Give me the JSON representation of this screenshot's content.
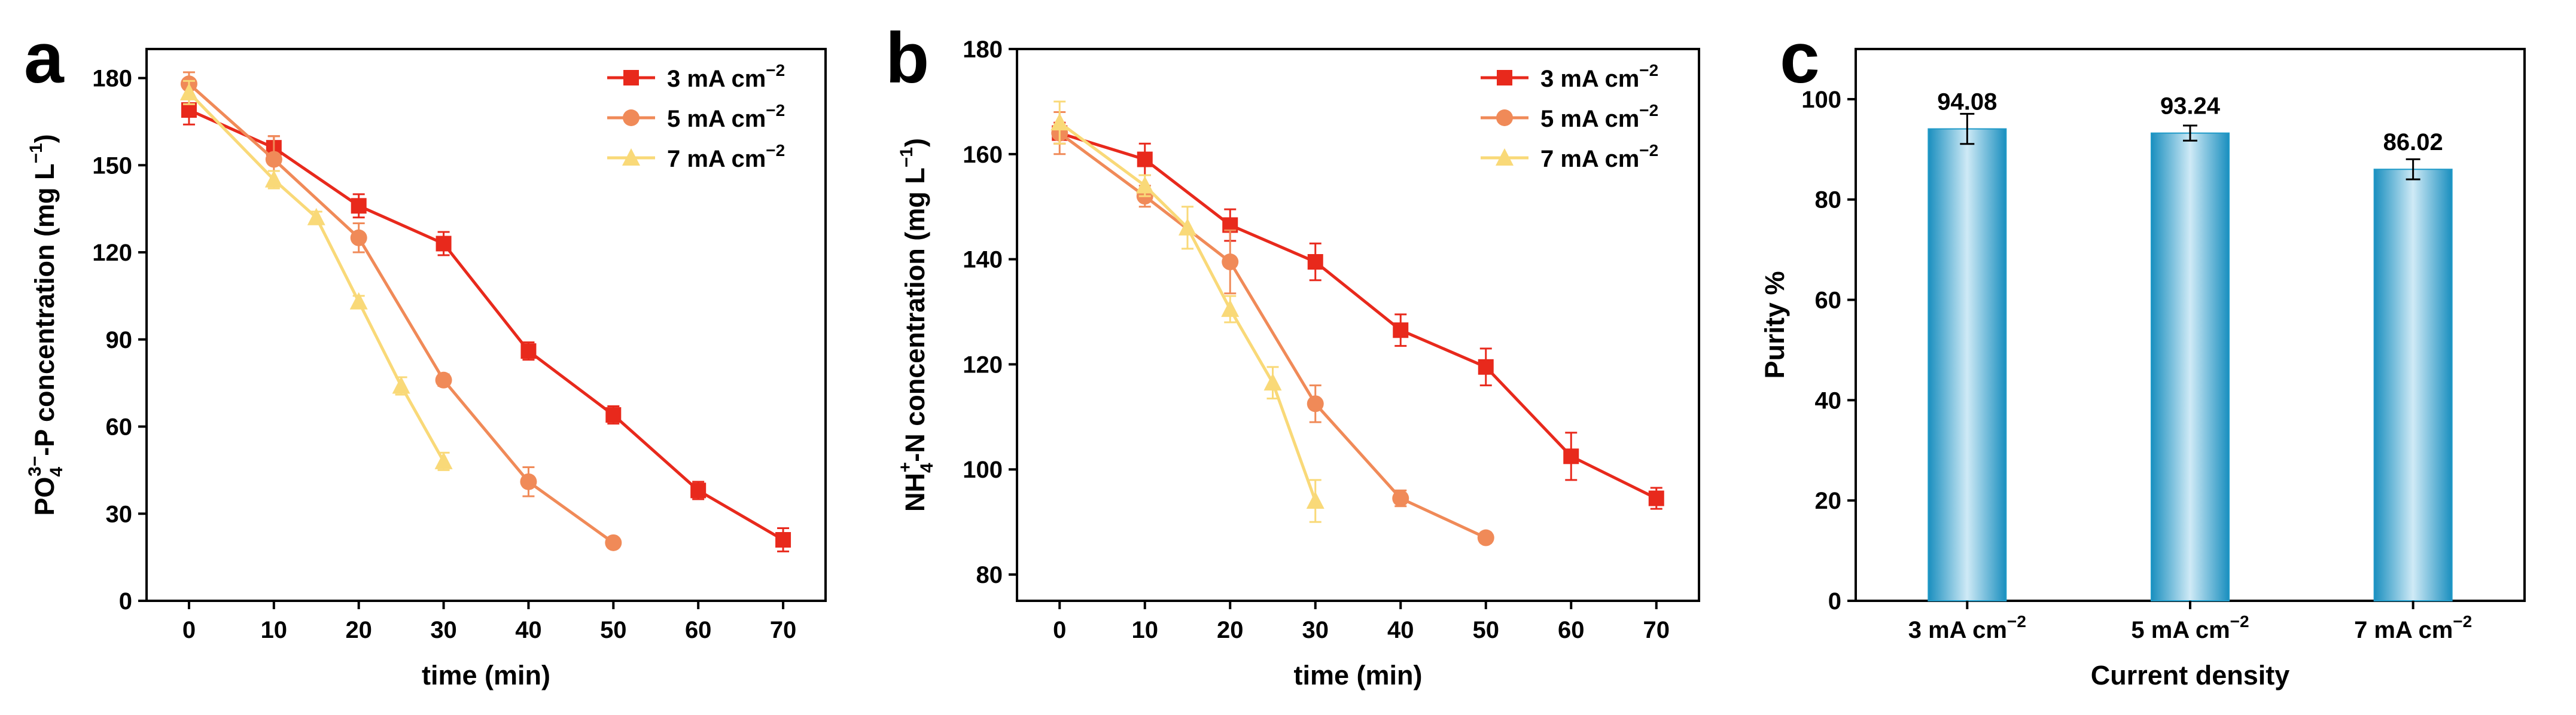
{
  "chart_data": [
    {
      "panel_label": "a",
      "type": "line",
      "xlabel": "time (min)",
      "ylabel": {
        "base": "PO",
        "sub": "4",
        "sup": "3−",
        "rest": "-P concentration (mg L",
        "rest_sup": "−1",
        "end": ")"
      },
      "xlim": [
        -5,
        75
      ],
      "ylim": [
        0,
        190
      ],
      "xticks": [
        0,
        10,
        20,
        30,
        40,
        50,
        60,
        70
      ],
      "yticks": [
        0,
        30,
        60,
        90,
        120,
        150,
        180
      ],
      "legend_position": "top-right",
      "series": [
        {
          "name": "3 mA cm",
          "name_sup": "−2",
          "color": "#e8291c",
          "marker": "square",
          "x": [
            0,
            10,
            20,
            30,
            40,
            50,
            60,
            70
          ],
          "y": [
            169,
            156,
            136,
            123,
            86,
            64,
            38,
            21
          ],
          "err": [
            5,
            4,
            4,
            4,
            3,
            3,
            3,
            4
          ]
        },
        {
          "name": "5 mA cm",
          "name_sup": "−2",
          "color": "#f08a58",
          "marker": "circle",
          "x": [
            0,
            10,
            20,
            30,
            40,
            50
          ],
          "y": [
            178,
            152,
            125,
            76,
            41,
            20
          ],
          "err": [
            4,
            8,
            5,
            2,
            5,
            1
          ]
        },
        {
          "name": "7 mA cm",
          "name_sup": "−2",
          "color": "#f9d978",
          "marker": "triangle",
          "x": [
            0,
            10,
            15,
            20,
            25,
            30
          ],
          "y": [
            175,
            145,
            132,
            103,
            74,
            48
          ],
          "err": [
            4,
            3,
            2,
            2,
            3,
            3
          ]
        }
      ]
    },
    {
      "panel_label": "b",
      "type": "line",
      "xlabel": "time (min)",
      "ylabel": {
        "base": "NH",
        "sub": "4",
        "sup": "+",
        "rest": "-N concentration (mg L",
        "rest_sup": "−1",
        "end": ")"
      },
      "xlim": [
        -5,
        75
      ],
      "ylim": [
        75,
        180
      ],
      "xticks": [
        0,
        10,
        20,
        30,
        40,
        50,
        60,
        70
      ],
      "yticks": [
        80,
        100,
        120,
        140,
        160,
        180
      ],
      "legend_position": "top-right",
      "series": [
        {
          "name": "3 mA cm",
          "name_sup": "−2",
          "color": "#e8291c",
          "marker": "square",
          "x": [
            0,
            10,
            20,
            30,
            40,
            50,
            60,
            70
          ],
          "y": [
            164,
            159,
            146.5,
            139.5,
            126.5,
            119.5,
            102.5,
            94.5
          ],
          "err": [
            2,
            3,
            3,
            3.5,
            3,
            3.5,
            4.5,
            2
          ]
        },
        {
          "name": "5 mA cm",
          "name_sup": "−2",
          "color": "#f08a58",
          "marker": "circle",
          "x": [
            0,
            10,
            20,
            30,
            40,
            50
          ],
          "y": [
            164,
            152,
            139.5,
            112.5,
            94.5,
            87
          ],
          "err": [
            4,
            2,
            6,
            3.5,
            1.5,
            1
          ]
        },
        {
          "name": "7 mA cm",
          "name_sup": "−2",
          "color": "#f9d978",
          "marker": "triangle",
          "x": [
            0,
            10,
            15,
            20,
            25,
            30
          ],
          "y": [
            166,
            154,
            146,
            130.5,
            116.5,
            94
          ],
          "err": [
            4,
            2,
            4,
            2.5,
            3,
            4
          ]
        }
      ]
    },
    {
      "panel_label": "c",
      "type": "bar",
      "xlabel": "Current density",
      "ylabel": "Purity %",
      "ylim": [
        0,
        110
      ],
      "yticks": [
        0,
        20,
        40,
        60,
        80,
        100
      ],
      "categories": [
        "3 mA cm",
        "5 mA cm",
        "7 mA cm"
      ],
      "category_sup": "−2",
      "values": [
        94.08,
        93.24,
        86.02
      ],
      "value_labels": [
        "94.08",
        "93.24",
        "86.02"
      ],
      "err": [
        3,
        1.5,
        2
      ],
      "bar_color": "#1f9ac8"
    }
  ]
}
